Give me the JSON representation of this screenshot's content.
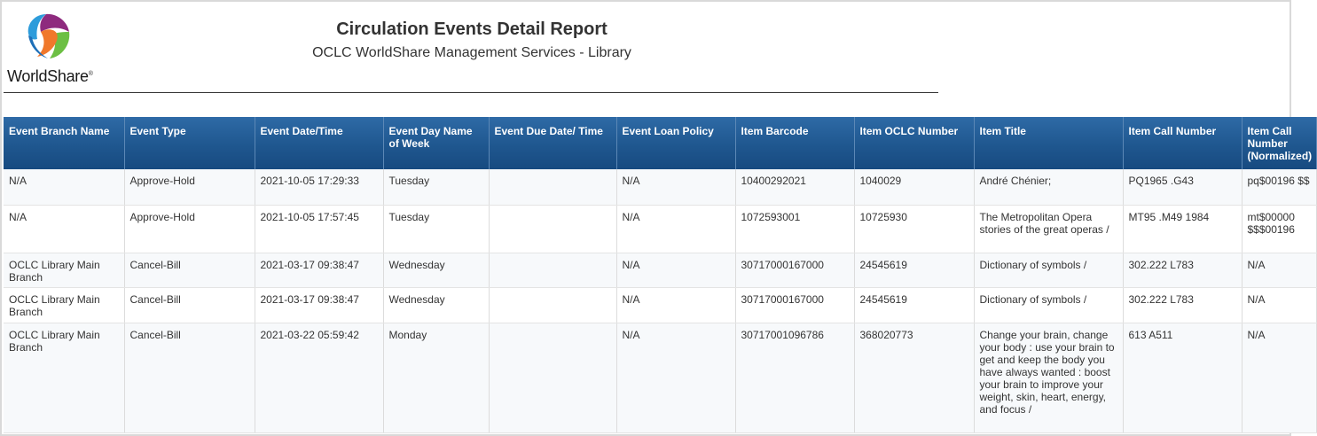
{
  "logo": {
    "text": "WorldShare",
    "registered": "®"
  },
  "report": {
    "title": "Circulation Events Detail Report",
    "subtitle": "OCLC WorldShare Management Services - Library"
  },
  "colors": {
    "header_bg": "#1f578f",
    "header_text": "#ffffff",
    "row_alt": "#f7f9fb",
    "rule": "#333333"
  },
  "table": {
    "headers": [
      "Event Branch Name",
      "Event Type",
      "Event Date/Time",
      "Event Day Name of Week",
      "Event Due Date/ Time",
      "Event Loan Policy",
      "Item Barcode",
      "Item OCLC Number",
      "Item Title",
      "Item Call Number",
      "Item Call Number (Normalized)"
    ],
    "rows": [
      [
        "N/A",
        "Approve-Hold",
        "2021-10-05 17:29:33",
        "Tuesday",
        "",
        "N/A",
        "10400292021",
        "1040029",
        "André Chénier;",
        "PQ1965 .G43",
        "pq$00196 $$"
      ],
      [
        "N/A",
        "Approve-Hold",
        "2021-10-05 17:57:45",
        "Tuesday",
        "",
        "N/A",
        "1072593001",
        "10725930",
        "The Metropolitan Opera stories of the great operas /",
        "MT95 .M49 1984",
        "mt$00000 $$$00196"
      ],
      [
        "OCLC Library Main Branch",
        "Cancel-Bill",
        "2021-03-17 09:38:47",
        "Wednesday",
        "",
        "N/A",
        "30717000167000",
        "24545619",
        "Dictionary of symbols /",
        "302.222 L783",
        "N/A"
      ],
      [
        "OCLC Library Main Branch",
        "Cancel-Bill",
        "2021-03-17 09:38:47",
        "Wednesday",
        "",
        "N/A",
        "30717000167000",
        "24545619",
        "Dictionary of symbols /",
        "302.222 L783",
        "N/A"
      ],
      [
        "OCLC Library Main Branch",
        "Cancel-Bill",
        "2021-03-22 05:59:42",
        "Monday",
        "",
        "N/A",
        "30717001096786",
        "368020773",
        "Change your brain, change your body : use your brain to get and keep the body you have always wanted : boost your brain to improve your weight, skin, heart, energy, and focus /",
        "613 A511",
        "N/A"
      ]
    ]
  }
}
